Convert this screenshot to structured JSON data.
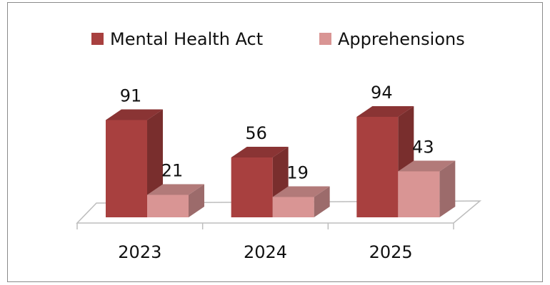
{
  "chart_data": {
    "type": "bar3d",
    "categories": [
      "2023",
      "2024",
      "2025"
    ],
    "series": [
      {
        "name": "Mental Health Act",
        "color": "#a8403f",
        "values": [
          91,
          56,
          94
        ]
      },
      {
        "name": "Apprehensions",
        "color": "#d99594",
        "values": [
          21,
          19,
          43
        ]
      }
    ],
    "legend": "top"
  }
}
